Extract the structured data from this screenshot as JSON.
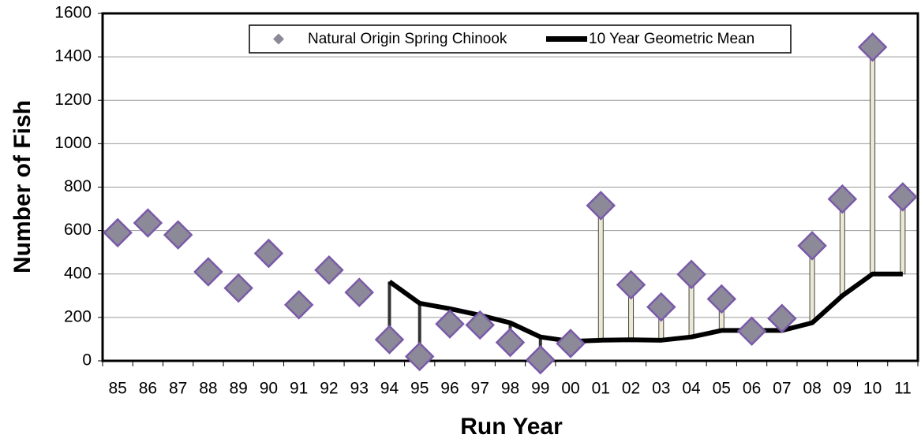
{
  "chart_data": {
    "type": "line",
    "x_label": "Run Year",
    "y_label": "Number of Fish",
    "categories": [
      "85",
      "86",
      "87",
      "88",
      "89",
      "90",
      "91",
      "92",
      "93",
      "94",
      "95",
      "96",
      "97",
      "98",
      "99",
      "00",
      "01",
      "02",
      "03",
      "04",
      "05",
      "06",
      "07",
      "08",
      "09",
      "10",
      "11"
    ],
    "series": [
      {
        "name": "Natural Origin Spring Chinook",
        "color": "#8c8a98",
        "marker": "diamond",
        "values": [
          590,
          635,
          580,
          410,
          335,
          495,
          258,
          418,
          315,
          98,
          20,
          170,
          165,
          85,
          5,
          80,
          715,
          350,
          248,
          398,
          285,
          137,
          195,
          530,
          745,
          1445,
          755
        ]
      },
      {
        "name": "10 Year Geometric Mean",
        "color": "#000000",
        "values": [
          null,
          null,
          null,
          null,
          null,
          null,
          null,
          null,
          null,
          365,
          265,
          240,
          210,
          175,
          110,
          90,
          95,
          97,
          95,
          110,
          140,
          140,
          140,
          175,
          300,
          400,
          400
        ]
      }
    ],
    "ylim": [
      0,
      1600
    ],
    "yticks": [
      0,
      200,
      400,
      600,
      800,
      1000,
      1200,
      1400,
      1600
    ],
    "grid": true,
    "legend": "top"
  }
}
